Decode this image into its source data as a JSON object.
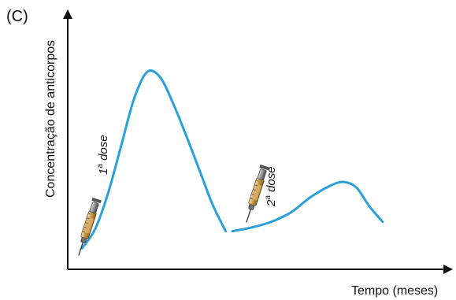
{
  "panel_label": "(C)",
  "chart_data": {
    "type": "line",
    "title": "",
    "xlabel": "Tempo (meses)",
    "ylabel": "Concentração de anticorpos",
    "grid": false,
    "colors": {
      "curve": "#2a9fda",
      "axis": "#111111"
    },
    "series": [
      {
        "points": [
          {
            "x": 0.0,
            "y": 0.04
          },
          {
            "x": 0.04,
            "y": 0.14
          },
          {
            "x": 0.08,
            "y": 0.33
          },
          {
            "x": 0.12,
            "y": 0.58
          },
          {
            "x": 0.16,
            "y": 0.83
          },
          {
            "x": 0.2,
            "y": 0.97
          },
          {
            "x": 0.24,
            "y": 0.94
          },
          {
            "x": 0.28,
            "y": 0.8
          },
          {
            "x": 0.32,
            "y": 0.63
          },
          {
            "x": 0.36,
            "y": 0.45
          },
          {
            "x": 0.4,
            "y": 0.27
          },
          {
            "x": 0.44,
            "y": 0.13
          }
        ]
      },
      {
        "points": [
          {
            "x": 0.46,
            "y": 0.13
          },
          {
            "x": 0.52,
            "y": 0.15
          },
          {
            "x": 0.58,
            "y": 0.18
          },
          {
            "x": 0.64,
            "y": 0.23
          },
          {
            "x": 0.7,
            "y": 0.31
          },
          {
            "x": 0.76,
            "y": 0.37
          },
          {
            "x": 0.8,
            "y": 0.39
          },
          {
            "x": 0.84,
            "y": 0.36
          },
          {
            "x": 0.88,
            "y": 0.26
          },
          {
            "x": 0.92,
            "y": 0.18
          }
        ]
      }
    ],
    "annotations": [
      {
        "kind": "dose",
        "ordinal": "1",
        "superscript": "a",
        "word": "dose",
        "icon": "syringe-icon",
        "at_x": 0.0
      },
      {
        "kind": "dose",
        "ordinal": "2",
        "superscript": "a",
        "word": "dose",
        "icon": "syringe-icon",
        "at_x": 0.46
      }
    ]
  }
}
